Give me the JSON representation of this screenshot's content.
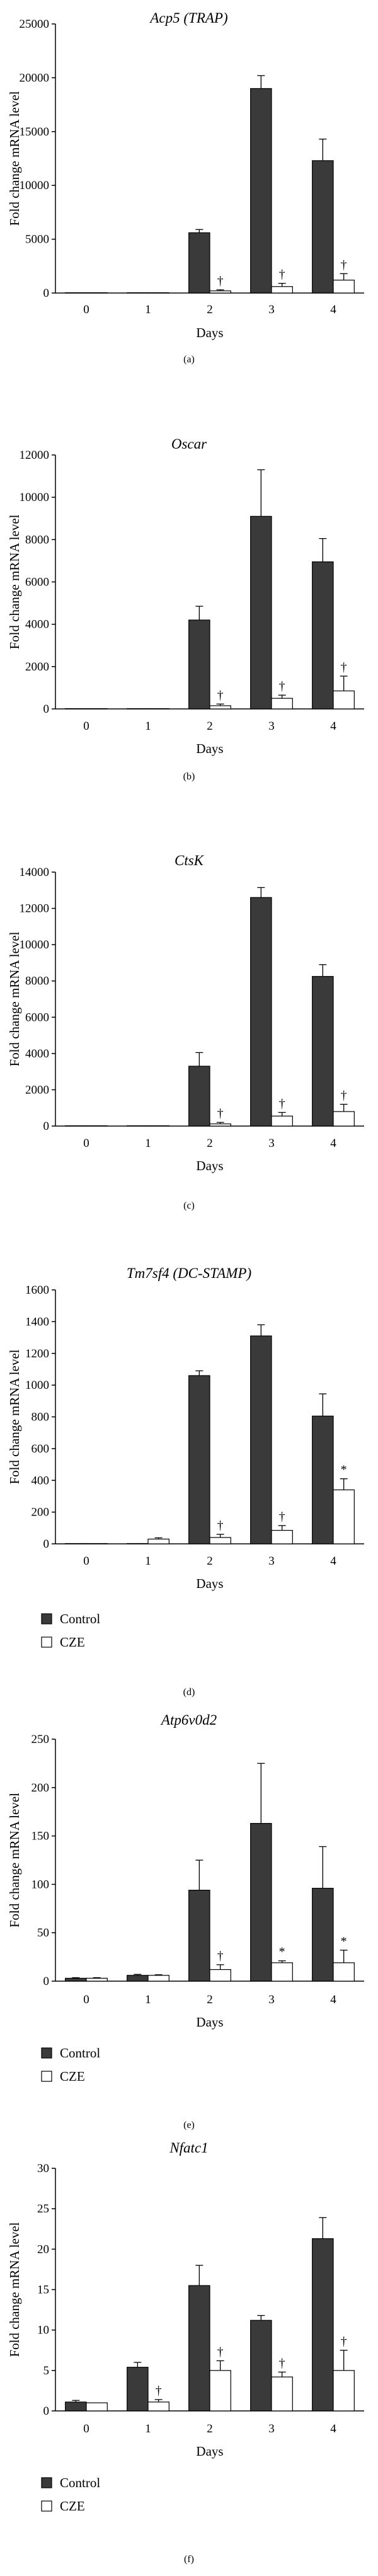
{
  "colors": {
    "control": "#3a3a3a",
    "cze": "#ffffff",
    "stroke": "#000000"
  },
  "chart_data": [
    {
      "type": "bar",
      "title": "Acp5 (TRAP)",
      "xlabel": "Days",
      "ylabel": "Fold change mRNA level",
      "panel_label": "(a)",
      "categories": [
        "0",
        "1",
        "2",
        "3",
        "4"
      ],
      "ylim": [
        0,
        25000
      ],
      "yticks": [
        0,
        5000,
        10000,
        15000,
        20000,
        25000
      ],
      "ytick_labels": [
        "0",
        "5000",
        "10000",
        "15000",
        "20000",
        "25000"
      ],
      "series": [
        {
          "key": "control",
          "values": [
            1,
            1,
            5600,
            19000,
            12300
          ],
          "errors": [
            0,
            0,
            300,
            1200,
            2000
          ]
        },
        {
          "key": "cze",
          "values": [
            1,
            1,
            200,
            600,
            1200
          ],
          "errors": [
            0,
            0,
            100,
            300,
            600
          ]
        }
      ],
      "markers": [
        "",
        "",
        "†",
        "†",
        "†"
      ],
      "legend": null
    },
    {
      "type": "bar",
      "title": "Oscar",
      "xlabel": "Days",
      "ylabel": "Fold change mRNA level",
      "panel_label": "(b)",
      "categories": [
        "0",
        "1",
        "2",
        "3",
        "4"
      ],
      "ylim": [
        0,
        12000
      ],
      "yticks": [
        0,
        2000,
        4000,
        6000,
        8000,
        10000,
        12000
      ],
      "ytick_labels": [
        "0",
        "2000",
        "4000",
        "6000",
        "8000",
        "10000",
        "12000"
      ],
      "series": [
        {
          "key": "control",
          "values": [
            1,
            1,
            4200,
            9100,
            6950
          ],
          "errors": [
            0,
            0,
            650,
            2200,
            1100
          ]
        },
        {
          "key": "cze",
          "values": [
            1,
            1,
            150,
            500,
            850
          ],
          "errors": [
            0,
            0,
            80,
            150,
            700
          ]
        }
      ],
      "markers": [
        "",
        "",
        "†",
        "†",
        "†"
      ],
      "legend": null
    },
    {
      "type": "bar",
      "title": "CtsK",
      "xlabel": "Days",
      "ylabel": "Fold change mRNA level",
      "panel_label": "(c)",
      "categories": [
        "0",
        "1",
        "2",
        "3",
        "4"
      ],
      "ylim": [
        0,
        14000
      ],
      "yticks": [
        0,
        2000,
        4000,
        6000,
        8000,
        10000,
        12000,
        14000
      ],
      "ytick_labels": [
        "0",
        "2000",
        "4000",
        "6000",
        "8000",
        "10000",
        "12000",
        "14000"
      ],
      "series": [
        {
          "key": "control",
          "values": [
            1,
            1,
            3300,
            12600,
            8250
          ],
          "errors": [
            0,
            0,
            750,
            550,
            650
          ]
        },
        {
          "key": "cze",
          "values": [
            1,
            1,
            120,
            550,
            800
          ],
          "errors": [
            0,
            0,
            80,
            200,
            400
          ]
        }
      ],
      "markers": [
        "",
        "",
        "†",
        "†",
        "†"
      ],
      "legend": null
    },
    {
      "type": "bar",
      "title": "Tm7sf4 (DC-STAMP)",
      "xlabel": "Days",
      "ylabel": "Fold change mRNA level",
      "panel_label": "(d)",
      "categories": [
        "0",
        "1",
        "2",
        "3",
        "4"
      ],
      "ylim": [
        0,
        1600
      ],
      "yticks": [
        0,
        200,
        400,
        600,
        800,
        1000,
        1200,
        1400,
        1600
      ],
      "ytick_labels": [
        "0",
        "200",
        "400",
        "600",
        "800",
        "1000",
        "1200",
        "1400",
        "1600"
      ],
      "series": [
        {
          "key": "control",
          "values": [
            1,
            2,
            1060,
            1310,
            805
          ],
          "errors": [
            0,
            0,
            30,
            70,
            140
          ]
        },
        {
          "key": "cze",
          "values": [
            1,
            30,
            40,
            85,
            340
          ],
          "errors": [
            0,
            8,
            20,
            30,
            70
          ]
        }
      ],
      "markers": [
        "",
        "",
        "†",
        "†",
        "*"
      ],
      "legend": [
        {
          "key": "control",
          "label": "Control"
        },
        {
          "key": "cze",
          "label": "CZE"
        }
      ]
    },
    {
      "type": "bar",
      "title": "Atp6v0d2",
      "xlabel": "Days",
      "ylabel": "Fold change mRNA level",
      "panel_label": "(e)",
      "categories": [
        "0",
        "1",
        "2",
        "3",
        "4"
      ],
      "ylim": [
        0,
        250
      ],
      "yticks": [
        0,
        50,
        100,
        150,
        200,
        250
      ],
      "ytick_labels": [
        "0",
        "50",
        "100",
        "150",
        "200",
        "250"
      ],
      "series": [
        {
          "key": "control",
          "values": [
            3,
            6,
            94,
            163,
            96
          ],
          "errors": [
            0.6,
            1,
            31,
            62,
            43
          ]
        },
        {
          "key": "cze",
          "values": [
            3,
            6,
            12,
            19,
            19
          ],
          "errors": [
            0.6,
            0.6,
            5,
            2,
            13
          ]
        }
      ],
      "markers": [
        "",
        "",
        "†",
        "*",
        "*"
      ],
      "legend": [
        {
          "key": "control",
          "label": "Control"
        },
        {
          "key": "cze",
          "label": "CZE"
        }
      ]
    },
    {
      "type": "bar",
      "title": "Nfatc1",
      "xlabel": "Days",
      "ylabel": "Fold change mRNA level",
      "panel_label": "(f)",
      "categories": [
        "0",
        "1",
        "2",
        "3",
        "4"
      ],
      "ylim": [
        0,
        30
      ],
      "yticks": [
        0,
        5,
        10,
        15,
        20,
        25,
        30
      ],
      "ytick_labels": [
        "0",
        "5",
        "10",
        "15",
        "20",
        "25",
        "30"
      ],
      "series": [
        {
          "key": "control",
          "values": [
            1.1,
            5.4,
            15.5,
            11.2,
            21.3
          ],
          "errors": [
            0.2,
            0.6,
            2.5,
            0.6,
            2.6
          ]
        },
        {
          "key": "cze",
          "values": [
            1.0,
            1.1,
            5.0,
            4.2,
            5.0
          ],
          "errors": [
            0,
            0.3,
            1.2,
            0.6,
            2.5
          ]
        }
      ],
      "markers": [
        "",
        "†",
        "†",
        "†",
        "†"
      ],
      "legend": [
        {
          "key": "control",
          "label": "Control"
        },
        {
          "key": "cze",
          "label": "CZE"
        }
      ]
    }
  ]
}
